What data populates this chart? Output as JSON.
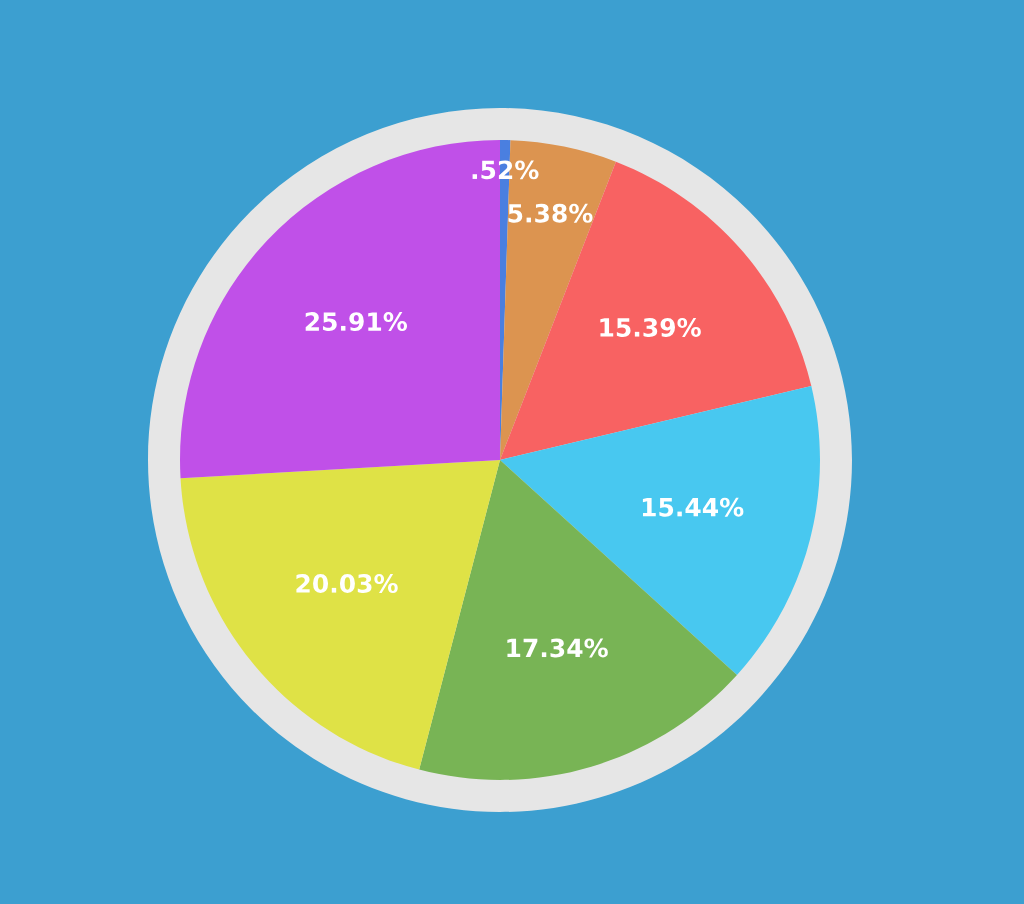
{
  "chart_data": {
    "type": "pie",
    "categories": [
      null,
      null,
      null,
      null,
      null,
      null,
      null
    ],
    "values": [
      0.52,
      5.38,
      15.39,
      15.44,
      17.34,
      20.03,
      25.91
    ],
    "value_labels": [
      ".52%",
      "5.38%",
      "15.39%",
      "15.44%",
      "17.34%",
      "20.03%",
      "25.91%"
    ],
    "colors": [
      "#4a7fe0",
      "#dc9450",
      "#f86262",
      "#48c8f0",
      "#78b455",
      "#dfe246",
      "#c050e8"
    ]
  }
}
